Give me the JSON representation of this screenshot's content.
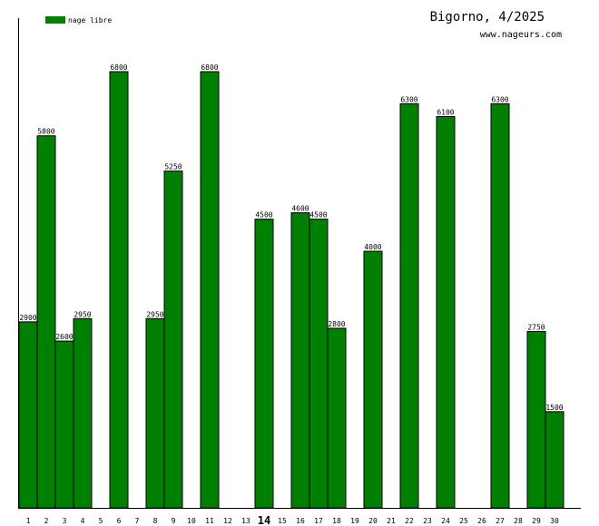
{
  "chart_data": {
    "type": "bar",
    "title": "Bigorno, 4/2025",
    "subtitle": "www.nageurs.com",
    "legend": {
      "entries": [
        {
          "name": "nage libre",
          "color": "#008000"
        }
      ],
      "position": "top-left"
    },
    "bar_color": "#008000",
    "highlight_category": "14",
    "categories": [
      "1",
      "2",
      "3",
      "4",
      "5",
      "6",
      "7",
      "8",
      "9",
      "10",
      "11",
      "12",
      "13",
      "14",
      "15",
      "16",
      "17",
      "18",
      "19",
      "20",
      "21",
      "22",
      "23",
      "24",
      "25",
      "26",
      "27",
      "28",
      "29",
      "30"
    ],
    "series": [
      {
        "name": "nage libre",
        "values": [
          2900,
          5800,
          2600,
          2950,
          null,
          6800,
          null,
          2950,
          5250,
          null,
          6800,
          null,
          null,
          4500,
          null,
          4600,
          4500,
          2800,
          null,
          4000,
          null,
          6300,
          null,
          6100,
          null,
          null,
          6300,
          null,
          2750,
          1500
        ]
      }
    ],
    "ylim": [
      0,
      6800
    ],
    "grid": false
  }
}
